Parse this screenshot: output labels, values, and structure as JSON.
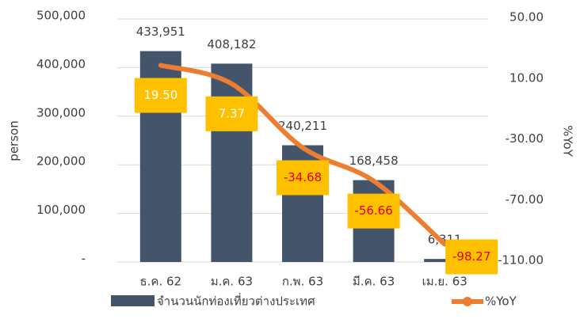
{
  "chart_data": {
    "type": "bar-line",
    "categories": [
      "ธ.ค. 62",
      "ม.ค. 63",
      "ก.พ. 63",
      "มี.ค. 63",
      "เม.ย. 63"
    ],
    "series": [
      {
        "name": "จำนวนนักท่องเที่ยวต่างประเทศ",
        "type": "bar",
        "color": "#44546a",
        "values": [
          433951,
          408182,
          240211,
          168458,
          6311
        ],
        "value_labels": [
          "433,951",
          "408,182",
          "240,211",
          "168,458",
          "6,311"
        ]
      },
      {
        "name": "%YoY",
        "type": "line",
        "axis": "y2",
        "color": "#ed7d31",
        "values": [
          19.5,
          7.37,
          -34.68,
          -56.66,
          -98.27
        ],
        "value_labels": [
          "19.50",
          "7.37",
          "-34.68",
          "-56.66",
          "-98.27"
        ]
      }
    ],
    "ylabel": "person",
    "y2label": "%YoY",
    "ylim": [
      0,
      500000
    ],
    "yticks": [
      {
        "value": 0,
        "label": "-"
      },
      {
        "value": 100000,
        "label": "100,000"
      },
      {
        "value": 200000,
        "label": "200,000"
      },
      {
        "value": 300000,
        "label": "300,000"
      },
      {
        "value": 400000,
        "label": "400,000"
      },
      {
        "value": 500000,
        "label": "500,000"
      }
    ],
    "y2lim": [
      -110,
      50
    ],
    "y2ticks": [
      {
        "value": -110,
        "label": "-110.00"
      },
      {
        "value": -70,
        "label": "-70.00"
      },
      {
        "value": -30,
        "label": "-30.00"
      },
      {
        "value": 10,
        "label": "10.00"
      },
      {
        "value": 50,
        "label": "50.00"
      }
    ],
    "grid": true,
    "legend": "bottom"
  }
}
